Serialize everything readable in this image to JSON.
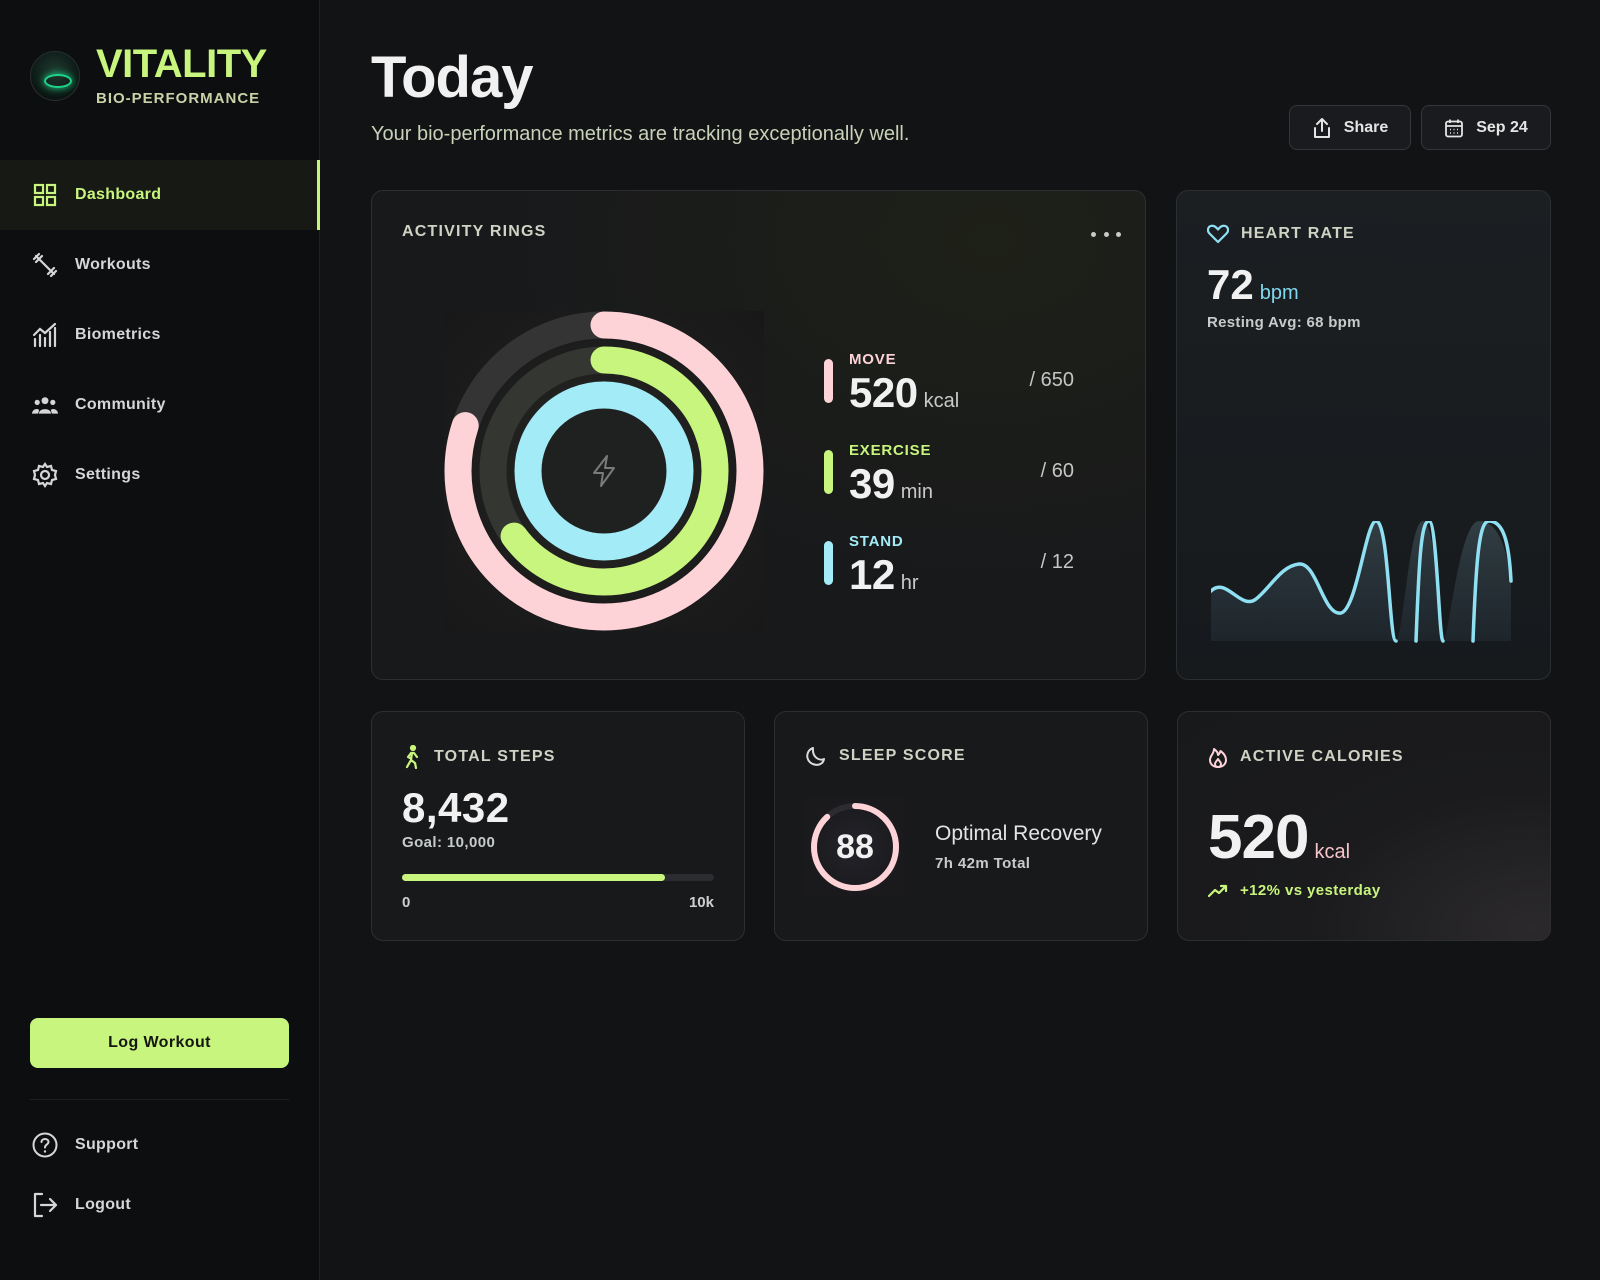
{
  "brand": {
    "name": "VITALITY",
    "subtitle": "BIO-PERFORMANCE"
  },
  "nav": [
    {
      "label": "Dashboard",
      "icon": "grid-icon",
      "active": true
    },
    {
      "label": "Workouts",
      "icon": "dumbbell-icon"
    },
    {
      "label": "Biometrics",
      "icon": "bar-chart-icon"
    },
    {
      "label": "Community",
      "icon": "people-icon"
    },
    {
      "label": "Settings",
      "icon": "gear-icon"
    }
  ],
  "log_workout": "Log Workout",
  "bottom_nav": [
    {
      "label": "Support",
      "icon": "help-circle-icon"
    },
    {
      "label": "Logout",
      "icon": "logout-icon"
    }
  ],
  "header": {
    "title": "Today",
    "subtitle": "Your bio-performance metrics are tracking exceptionally well.",
    "share_label": "Share",
    "date_label": "Sep 24"
  },
  "activity": {
    "title": "ACTIVITY RINGS",
    "move": {
      "label": "MOVE",
      "value": "520",
      "unit": "kcal",
      "goal": "/ 650",
      "progress": 0.8,
      "color": "#fdd3d8"
    },
    "exercise": {
      "label": "EXERCISE",
      "value": "39",
      "unit": "min",
      "goal": "/ 60",
      "progress": 0.65,
      "color": "#c8f57d"
    },
    "stand": {
      "label": "STAND",
      "value": "12",
      "unit": "hr",
      "goal": "/ 12",
      "progress": 1.0,
      "color": "#a3ecf7"
    }
  },
  "heart_rate": {
    "title": "HEART RATE",
    "value": "72",
    "unit": "bpm",
    "resting": "Resting Avg: 68 bpm",
    "color": "#8fe0f2"
  },
  "steps": {
    "title": "TOTAL STEPS",
    "value": "8,432",
    "goal": "Goal: 10,000",
    "progress": 0.8432,
    "min_label": "0",
    "max_label": "10k"
  },
  "sleep": {
    "title": "SLEEP SCORE",
    "score": "88",
    "progress": 0.88,
    "status": "Optimal Recovery",
    "total": "7h 42m Total"
  },
  "calories": {
    "title": "ACTIVE CALORIES",
    "value": "520",
    "unit": "kcal",
    "trend": "+12% vs yesterday"
  }
}
